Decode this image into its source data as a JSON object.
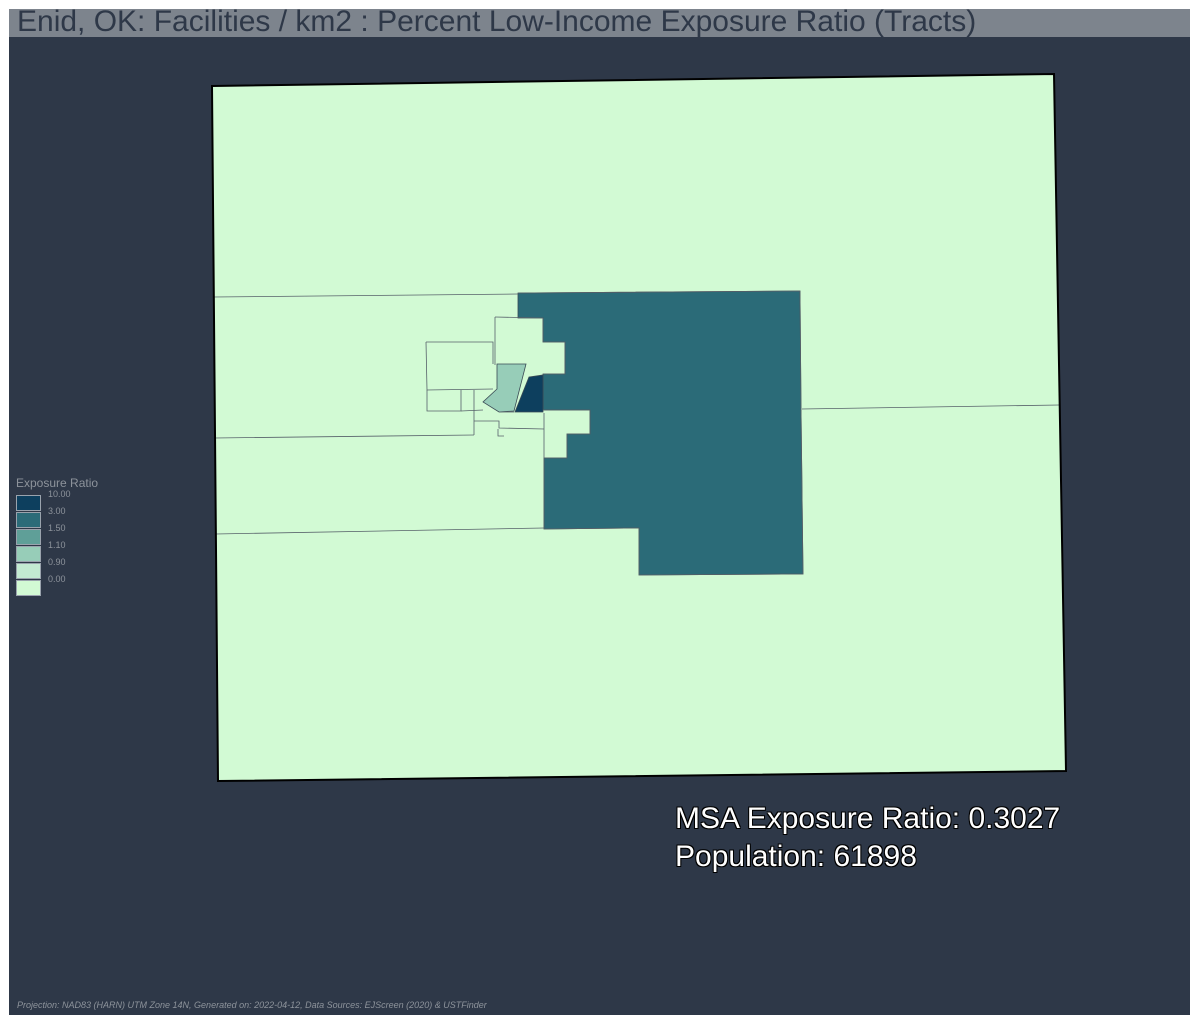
{
  "title": "Enid, OK: Facilities / km2 : Percent Low-Income Exposure Ratio (Tracts)",
  "legend": {
    "title": "Exposure Ratio",
    "items": [
      {
        "label": "10.00",
        "color": "#0d3f5e"
      },
      {
        "label": "3.00",
        "color": "#2b6b78"
      },
      {
        "label": "1.50",
        "color": "#5f9f98"
      },
      {
        "label": "1.10",
        "color": "#97cdb8"
      },
      {
        "label": "0.90",
        "color": "#c3ebd2"
      },
      {
        "label": "0.00",
        "color": "#d2fad4"
      }
    ]
  },
  "stats": {
    "exposure_label": "MSA Exposure Ratio: 0.3027",
    "population_label": "Population: 61898"
  },
  "footer": "Projection: NAD83 (HARN) UTM Zone 14N, Generated on: 2022-04-12, Data Sources: EJScreen (2020) & USTFinder",
  "colors": {
    "background": "#2e3848",
    "title_bar": "#7d848d",
    "low_tract": "#d2fad4",
    "high_tract": "#2b6b78",
    "highest_tract": "#0d3f5e",
    "mid_tract": "#97cdb8",
    "boundary": "#000000"
  }
}
